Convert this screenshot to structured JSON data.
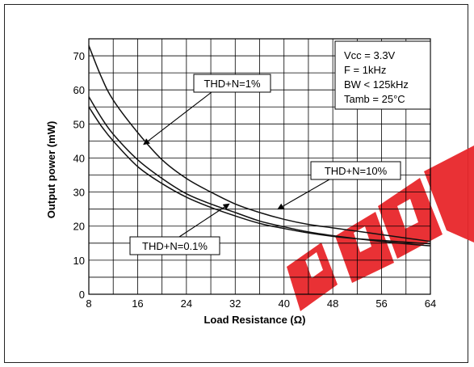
{
  "chart_data": {
    "type": "line",
    "title": "",
    "xlabel": "Load Resistance (Ω)",
    "ylabel": "Output power (mW)",
    "xlim": [
      8,
      64
    ],
    "ylim": [
      0,
      75
    ],
    "grid": true,
    "x_ticks": [
      "8",
      "16",
      "24",
      "32",
      "40",
      "48",
      "56",
      "64"
    ],
    "y_ticks": [
      "0",
      "10",
      "20",
      "30",
      "40",
      "50",
      "60",
      "70"
    ],
    "x": [
      8,
      10,
      12,
      16,
      20,
      24,
      28,
      32,
      36,
      40,
      44,
      48,
      52,
      56,
      60,
      64
    ],
    "series": [
      {
        "name": "THD+N=10%",
        "values": [
          73.0,
          64.0,
          57.0,
          47.5,
          39.5,
          34.0,
          30.0,
          26.5,
          24.0,
          22.0,
          20.5,
          19.5,
          18.5,
          17.5,
          16.5,
          15.5
        ]
      },
      {
        "name": "THD+N=1%",
        "values": [
          58.0,
          52.0,
          47.0,
          39.5,
          34.0,
          29.5,
          26.5,
          24.0,
          21.5,
          19.8,
          18.3,
          17.2,
          16.3,
          15.5,
          14.8,
          14.2
        ]
      },
      {
        "name": "THD+N=0.1%",
        "values": [
          55.0,
          49.5,
          45.0,
          37.5,
          32.5,
          28.5,
          25.5,
          23.0,
          20.8,
          19.3,
          18.0,
          17.0,
          16.3,
          15.8,
          15.3,
          14.8
        ]
      }
    ],
    "annotations": [
      {
        "text": "THD+N=1%",
        "arrow_to": [
          17,
          44
        ]
      },
      {
        "text": "THD+N=10%",
        "arrow_to": [
          39,
          25
        ]
      },
      {
        "text": "THD+N=0.1%",
        "arrow_to": [
          31,
          26.5
        ]
      }
    ],
    "conditions": [
      "Vcc = 3.3V",
      "F = 1kHz",
      "BW < 125kHz",
      "Tamb = 25°C"
    ],
    "legend_position": "top-right"
  },
  "colors": {
    "curve": "#111111",
    "grid": "#000000",
    "watermark": "#e8272b"
  }
}
